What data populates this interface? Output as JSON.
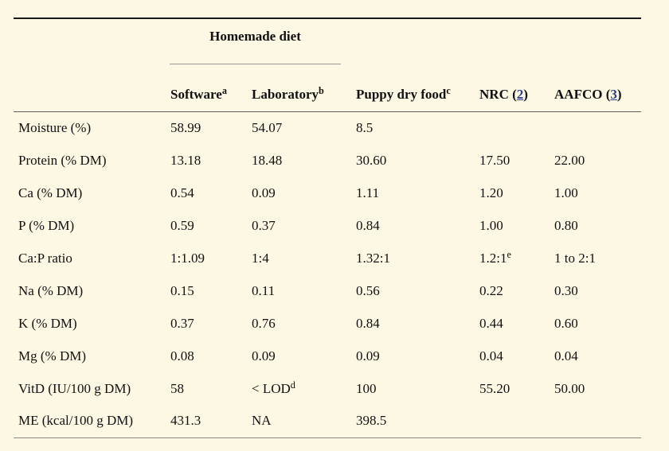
{
  "colors": {
    "page_bg": "#fcf8e3",
    "text": "#111111",
    "link": "#2c3e8f",
    "rule_top": "#1a1a1a",
    "rule_header": "#5f5e56",
    "rule_spanner": "#9b9a92",
    "rule_bottom": "#8a8980"
  },
  "table": {
    "spanner_label": "Homemade diet",
    "columns": [
      {
        "text": "Software",
        "sup": "a"
      },
      {
        "text": "Laboratory",
        "sup": "b"
      },
      {
        "text": "Puppy dry food",
        "sup": "c"
      },
      {
        "pre": "NRC (",
        "link": "2",
        "post": ")"
      },
      {
        "pre": "AAFCO (",
        "link": "3",
        "post": ")"
      }
    ],
    "rows": [
      {
        "label": "Moisture (%)",
        "values": [
          "58.99",
          "54.07",
          "8.5",
          "",
          ""
        ]
      },
      {
        "label": "Protein (% DM)",
        "values": [
          "13.18",
          "18.48",
          "30.60",
          "17.50",
          "22.00"
        ]
      },
      {
        "label": "Ca (% DM)",
        "values": [
          "0.54",
          "0.09",
          "1.11",
          "1.20",
          "1.00"
        ]
      },
      {
        "label": "P (% DM)",
        "values": [
          "0.59",
          "0.37",
          "0.84",
          "1.00",
          "0.80"
        ]
      },
      {
        "label": "Ca:P ratio",
        "values": [
          "1:1.09",
          "1:4",
          "1.32:1",
          {
            "text": "1.2:1",
            "sup": "e"
          },
          "1 to 2:1"
        ]
      },
      {
        "label": "Na (% DM)",
        "values": [
          "0.15",
          "0.11",
          "0.56",
          "0.22",
          "0.30"
        ]
      },
      {
        "label": "K (% DM)",
        "values": [
          "0.37",
          "0.76",
          "0.84",
          "0.44",
          "0.60"
        ]
      },
      {
        "label": "Mg (% DM)",
        "values": [
          "0.08",
          "0.09",
          "0.09",
          "0.04",
          "0.04"
        ]
      },
      {
        "label": "VitD (IU/100 g DM)",
        "values": [
          "58",
          {
            "text": "< LOD",
            "sup": "d"
          },
          "100",
          "55.20",
          "50.00"
        ]
      },
      {
        "label": "ME (kcal/100 g DM)",
        "values": [
          "431.3",
          "NA",
          "398.5",
          "",
          ""
        ]
      }
    ]
  }
}
